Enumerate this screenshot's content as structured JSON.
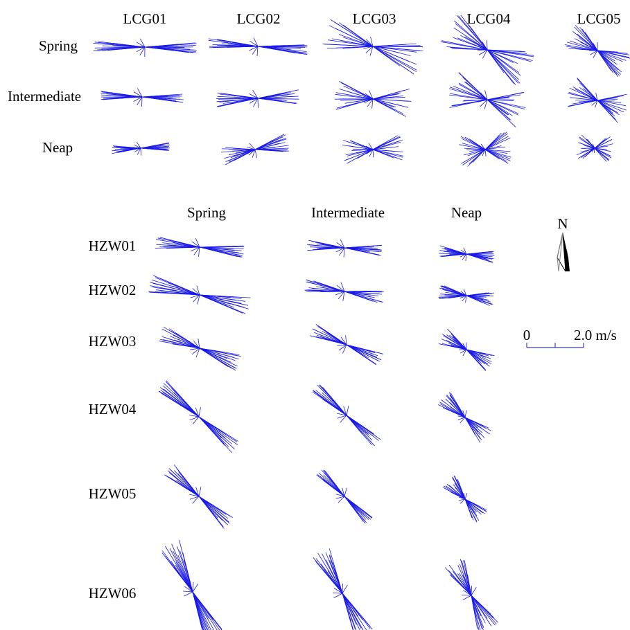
{
  "top_panel": {
    "columns": [
      "LCG01",
      "LCG02",
      "LCG03",
      "LCG04",
      "LCG05"
    ],
    "rows": [
      "Spring",
      "Intermediate",
      "Neap"
    ]
  },
  "bottom_panel": {
    "columns": [
      "Spring",
      "Intermediate",
      "Neap"
    ],
    "rows": [
      "HZW01",
      "HZW02",
      "HZW03",
      "HZW04",
      "HZW05",
      "HZW06"
    ]
  },
  "north_arrow": {
    "label": "N",
    "icon": "north-arrow-icon"
  },
  "scale_bar": {
    "start_label": "0",
    "end_label": "2.0 m/s"
  },
  "colors": {
    "vectors": "#1a1ae6",
    "text": "#000000"
  }
}
